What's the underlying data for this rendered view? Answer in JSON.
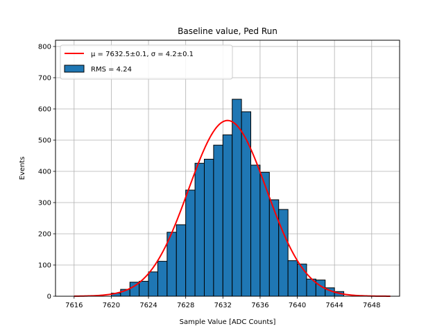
{
  "chart_data": {
    "type": "bar",
    "title": "Baseline value, Ped Run",
    "xlabel": "Sample Value [ADC Counts]",
    "ylabel": "Events",
    "xlim": [
      7614,
      7651
    ],
    "ylim": [
      0,
      820
    ],
    "xticks": [
      7616,
      7620,
      7624,
      7628,
      7632,
      7636,
      7640,
      7644,
      7648
    ],
    "yticks": [
      0,
      100,
      200,
      300,
      400,
      500,
      600,
      700,
      800
    ],
    "grid": true,
    "legend_position": "upper-left",
    "colors": {
      "bars": "#1f77b4",
      "bar_edge": "#000000",
      "fit": "#ff0000",
      "grid": "#b0b0b0"
    },
    "series": [
      {
        "name": "RMS = 4.24",
        "kind": "histogram",
        "bin_width": 1,
        "bin_starts": [
          7620,
          7621,
          7622,
          7623,
          7624,
          7625,
          7626,
          7627,
          7628,
          7629,
          7630,
          7631,
          7632,
          7633,
          7634,
          7635,
          7636,
          7637,
          7638,
          7639,
          7640,
          7641,
          7642,
          7643,
          7644
        ],
        "values": [
          10,
          22,
          45,
          48,
          78,
          112,
          205,
          229,
          340,
          426,
          439,
          484,
          517,
          631,
          591,
          420,
          397,
          309,
          278,
          114,
          103,
          55,
          52,
          27,
          15
        ]
      },
      {
        "name": "μ = 7632.5±0.1, σ = 4.2±0.1",
        "kind": "gaussian-fit",
        "mu": 7632.5,
        "sigma": 4.2,
        "amplitude": 563,
        "range": [
          7616,
          7650
        ]
      }
    ]
  }
}
